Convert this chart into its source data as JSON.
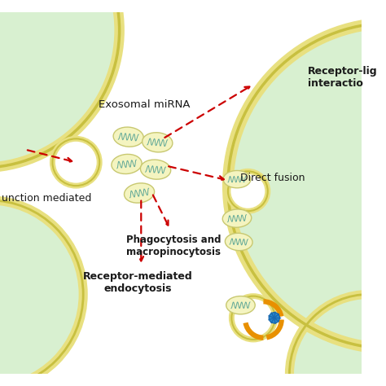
{
  "bg_color": "#ffffff",
  "cell_fill": "#d8f0d0",
  "cell_yellow_thick": "#e8e080",
  "cell_yellow_edge": "#c8c040",
  "exo_fill": "#f4f4c0",
  "exo_edge": "#c8c870",
  "exo_line": "#60a898",
  "arrow_color": "#cc0000",
  "text_color": "#1a1a1a",
  "bold_labels": [
    "Phagocytosis and\nmacropinocytosis",
    "Receptor-mediated\nendocytosis"
  ],
  "normal_labels": [
    "Exosomal miRNA",
    "Receptor-lig\ninteractio",
    "Direct fusion",
    "unction mediated"
  ]
}
